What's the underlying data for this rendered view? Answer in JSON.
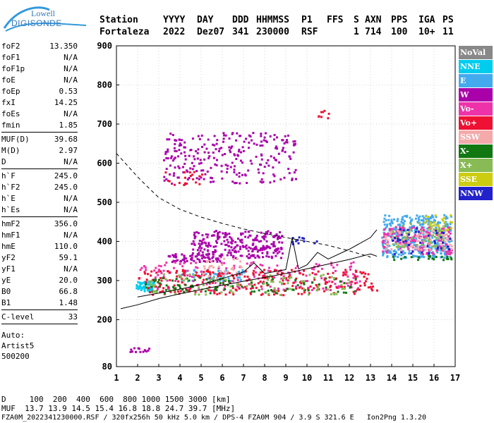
{
  "logo": {
    "line1": "Lowell",
    "line2": "DIGISONDE"
  },
  "header": {
    "labels": [
      "Station",
      "YYYY",
      "DAY",
      "DDD",
      "HHMMSS",
      "P1",
      "FFS",
      "S",
      "AXN",
      "PPS",
      "IGA",
      "PS"
    ],
    "values": [
      "Fortaleza",
      "2022",
      "Dez07",
      "341",
      "230000",
      "RSF",
      "",
      "1",
      "714",
      "100",
      "10+",
      "11"
    ]
  },
  "params": {
    "group1": [
      {
        "label": "foF2",
        "value": "13.350"
      },
      {
        "label": "foF1",
        "value": "N/A"
      },
      {
        "label": "foF1p",
        "value": "N/A"
      },
      {
        "label": "foE",
        "value": "N/A"
      },
      {
        "label": "foEp",
        "value": "0.53"
      },
      {
        "label": "fxI",
        "value": "14.25"
      },
      {
        "label": "foEs",
        "value": "N/A"
      },
      {
        "label": "fmin",
        "value": "1.85"
      }
    ],
    "group2": [
      {
        "label": "MUF(D)",
        "value": "39.68"
      },
      {
        "label": "M(D)",
        "value": "2.97"
      },
      {
        "label": "D",
        "value": "N/A"
      }
    ],
    "group3": [
      {
        "label": "h`F",
        "value": "245.0"
      },
      {
        "label": "h`F2",
        "value": "245.0"
      },
      {
        "label": "h`E",
        "value": "N/A"
      },
      {
        "label": "h`Es",
        "value": "N/A"
      }
    ],
    "group4": [
      {
        "label": "hmF2",
        "value": "356.0"
      },
      {
        "label": "hmF1",
        "value": "N/A"
      },
      {
        "label": "hmE",
        "value": "110.0"
      },
      {
        "label": "yF2",
        "value": "59.1"
      },
      {
        "label": "yF1",
        "value": "N/A"
      },
      {
        "label": "yE",
        "value": "20.0"
      },
      {
        "label": "B0",
        "value": "66.8"
      },
      {
        "label": "B1",
        "value": "1.48"
      }
    ],
    "group5": [
      {
        "label": "C-level",
        "value": "33"
      }
    ],
    "auto": [
      "Auto:",
      "Artist5",
      "500200"
    ]
  },
  "legend": [
    {
      "label": "NoVal",
      "color": "#888888"
    },
    {
      "label": "NNE",
      "color": "#00ccee"
    },
    {
      "label": "E",
      "color": "#44aaee"
    },
    {
      "label": "W",
      "color": "#aa00aa"
    },
    {
      "label": "Vo-",
      "color": "#ee33aa"
    },
    {
      "label": "Vo+",
      "color": "#ee1133"
    },
    {
      "label": "SSW",
      "color": "#f4aaaa"
    },
    {
      "label": "X-",
      "color": "#117711"
    },
    {
      "label": "X+",
      "color": "#88bb55"
    },
    {
      "label": "SSE",
      "color": "#cccc11"
    },
    {
      "label": "NNW",
      "color": "#2222cc"
    }
  ],
  "footer": {
    "line1": "D     100  200  400  600  800 1000 1500 3000 [km]",
    "line2": "MUF  13.7 13.9 14.5 15.4 16.8 18.8 24.7 39.7 [MHz]",
    "line3": "FZA0M_2022341230000.RSF / 320fx256h 50 kHz 5.0 km / DPS-4 FZA0M 904 / 3.9 S 321.6 E   Ion2Png 1.3.20"
  },
  "chart_data": {
    "type": "scatter",
    "xlim": [
      1,
      17
    ],
    "ylim": [
      80,
      900
    ],
    "xticks": [
      1,
      2,
      3,
      4,
      5,
      6,
      7,
      8,
      9,
      10,
      11,
      12,
      13,
      14,
      15,
      16,
      17
    ],
    "yticks": [
      80,
      200,
      300,
      400,
      500,
      600,
      700,
      800,
      900
    ],
    "grid": true,
    "series": [
      {
        "name": "NNE",
        "color": "#00ccee",
        "regions": [
          [
            1.9,
            2.8,
            275,
            300,
            60
          ]
        ]
      },
      {
        "name": "E",
        "color": "#44aaee",
        "regions": [
          [
            13.5,
            16.8,
            360,
            470,
            380
          ],
          [
            4,
            7,
            300,
            330,
            60
          ]
        ]
      },
      {
        "name": "W",
        "color": "#aa00aa",
        "regions": [
          [
            4.5,
            8.8,
            360,
            430,
            260
          ],
          [
            3.3,
            6,
            350,
            370,
            60
          ],
          [
            1.5,
            2.6,
            120,
            130,
            14
          ],
          [
            3.2,
            9.5,
            550,
            680,
            260
          ]
        ]
      },
      {
        "name": "Vo-",
        "color": "#ee33aa",
        "regions": [
          [
            2,
            12.5,
            275,
            350,
            180
          ],
          [
            13.5,
            16.8,
            370,
            440,
            160
          ]
        ]
      },
      {
        "name": "Vo+",
        "color": "#ee1133",
        "regions": [
          [
            2,
            13.3,
            265,
            330,
            260
          ],
          [
            3.1,
            5,
            545,
            580,
            20
          ],
          [
            10.5,
            11.5,
            715,
            740,
            8
          ]
        ]
      },
      {
        "name": "SSW",
        "color": "#f4aaaa",
        "regions": [
          [
            13.5,
            16.8,
            380,
            430,
            90
          ],
          [
            5,
            7,
            300,
            360,
            30
          ]
        ]
      },
      {
        "name": "X-",
        "color": "#117711",
        "regions": [
          [
            2.2,
            12.5,
            270,
            310,
            100
          ],
          [
            14,
            16.8,
            355,
            365,
            20
          ]
        ]
      },
      {
        "name": "X+",
        "color": "#88bb55",
        "regions": [
          [
            2.5,
            12,
            265,
            320,
            90
          ],
          [
            14,
            16.5,
            380,
            450,
            60
          ]
        ]
      },
      {
        "name": "SSE",
        "color": "#cccc11",
        "regions": [
          [
            15.5,
            16.8,
            430,
            470,
            30
          ]
        ]
      },
      {
        "name": "NNW",
        "color": "#2222cc",
        "regions": [
          [
            9,
            10.5,
            395,
            420,
            12
          ],
          [
            14,
            16.8,
            370,
            440,
            40
          ]
        ]
      }
    ],
    "curves": [
      {
        "style": "dashed",
        "points": [
          [
            1,
            625
          ],
          [
            1.5,
            595
          ],
          [
            2,
            565
          ],
          [
            2.5,
            538
          ],
          [
            3,
            512
          ],
          [
            4,
            482
          ],
          [
            5,
            462
          ],
          [
            6,
            446
          ],
          [
            7,
            432
          ],
          [
            8,
            420
          ],
          [
            9,
            410
          ],
          [
            10,
            400
          ],
          [
            11,
            390
          ],
          [
            12,
            376
          ],
          [
            13,
            360
          ]
        ]
      },
      {
        "style": "solid",
        "points": [
          [
            1.2,
            228
          ],
          [
            2,
            238
          ],
          [
            3,
            254
          ],
          [
            4,
            266
          ],
          [
            5,
            277
          ],
          [
            6,
            288
          ],
          [
            7,
            298
          ],
          [
            8,
            308
          ],
          [
            9,
            318
          ],
          [
            10,
            330
          ],
          [
            11,
            342
          ],
          [
            12,
            354
          ],
          [
            13,
            368
          ],
          [
            13.3,
            362
          ]
        ]
      },
      {
        "style": "solid",
        "points": [
          [
            2,
            258
          ],
          [
            3,
            268
          ],
          [
            4,
            278
          ],
          [
            5,
            290
          ],
          [
            6,
            305
          ],
          [
            7,
            322
          ],
          [
            7.5,
            345
          ],
          [
            8,
            318
          ],
          [
            9,
            328
          ],
          [
            9.3,
            410
          ],
          [
            9.6,
            330
          ],
          [
            10,
            340
          ],
          [
            10.5,
            372
          ],
          [
            11,
            355
          ],
          [
            12,
            380
          ],
          [
            13,
            410
          ],
          [
            13.3,
            430
          ]
        ]
      }
    ]
  }
}
